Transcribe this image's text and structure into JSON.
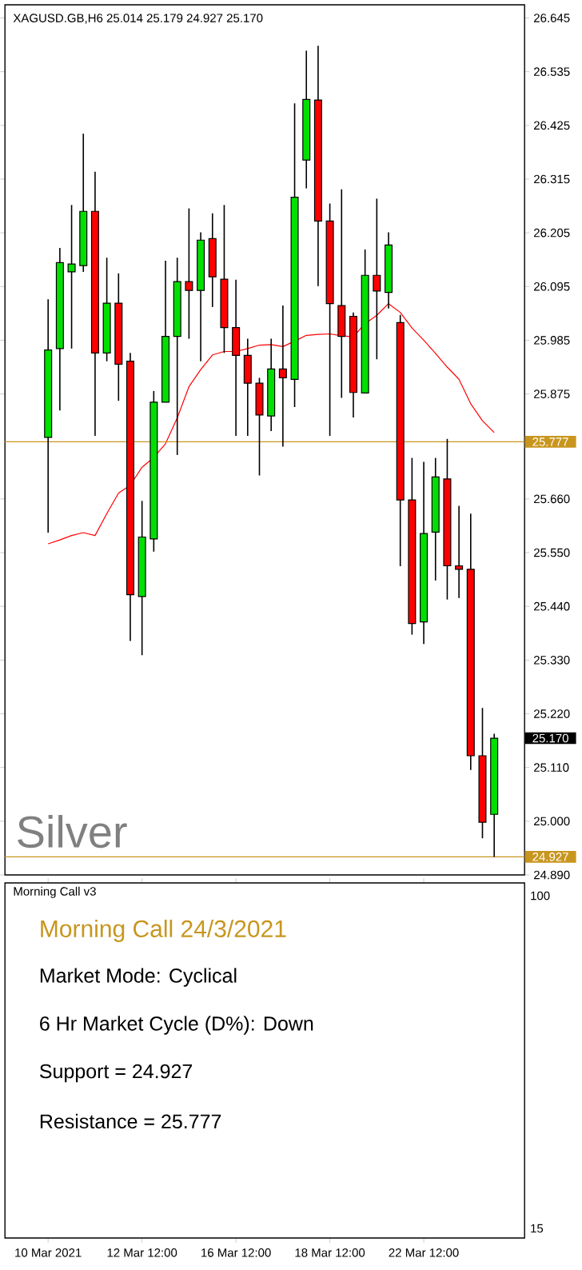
{
  "chart_data": [
    {
      "type": "candlestick",
      "title": "XAGUSD.GB,H6 25.014 25.179 24.927 25.170",
      "categories": [
        null,
        null,
        null,
        null,
        null,
        null,
        null,
        null,
        null,
        null,
        null,
        null,
        null,
        null,
        null,
        null,
        null,
        null,
        null,
        null,
        null,
        null,
        null,
        null,
        null,
        null,
        null,
        null,
        null,
        null,
        null,
        null,
        null,
        null,
        null,
        null,
        null,
        null,
        null
      ],
      "ohlc": [
        [
          25.786,
          26.069,
          25.591,
          25.965
        ],
        [
          25.968,
          26.174,
          25.841,
          26.144
        ],
        [
          26.125,
          26.262,
          25.968,
          26.141
        ],
        [
          26.138,
          26.408,
          26.125,
          26.249
        ],
        [
          26.249,
          26.33,
          25.789,
          25.959
        ],
        [
          25.959,
          26.154,
          25.942,
          26.061
        ],
        [
          26.061,
          26.122,
          25.861,
          25.936
        ],
        [
          25.942,
          25.959,
          25.369,
          25.464
        ],
        [
          25.46,
          25.656,
          25.34,
          25.582
        ],
        [
          25.578,
          25.881,
          25.552,
          25.858
        ],
        [
          25.858,
          26.148,
          25.858,
          25.993
        ],
        [
          25.993,
          26.154,
          25.75,
          26.105
        ],
        [
          26.105,
          26.255,
          25.988,
          26.087
        ],
        [
          26.087,
          26.206,
          25.942,
          26.19
        ],
        [
          26.193,
          26.245,
          26.053,
          26.115
        ],
        [
          26.11,
          26.262,
          25.959,
          26.011
        ],
        [
          26.011,
          26.109,
          25.789,
          25.954
        ],
        [
          25.954,
          25.988,
          25.789,
          25.897
        ],
        [
          25.897,
          25.908,
          25.708,
          25.832
        ],
        [
          25.83,
          25.988,
          25.799,
          25.926
        ],
        [
          25.926,
          26.056,
          25.767,
          25.908
        ],
        [
          25.905,
          26.47,
          25.848,
          26.278
        ],
        [
          26.354,
          26.578,
          26.296,
          26.478
        ],
        [
          26.477,
          26.588,
          26.096,
          26.229
        ],
        [
          26.229,
          26.265,
          25.789,
          26.06
        ],
        [
          26.056,
          26.294,
          25.867,
          25.993
        ],
        [
          26.034,
          26.042,
          25.827,
          25.878
        ],
        [
          25.877,
          26.171,
          25.877,
          26.118
        ],
        [
          26.118,
          26.275,
          25.946,
          26.086
        ],
        [
          26.083,
          26.206,
          26.05,
          26.18
        ],
        [
          26.021,
          26.037,
          25.522,
          25.658
        ],
        [
          25.658,
          25.744,
          25.382,
          25.405
        ],
        [
          25.408,
          25.736,
          25.363,
          25.589
        ],
        [
          25.592,
          25.744,
          25.493,
          25.705
        ],
        [
          25.701,
          25.783,
          25.454,
          25.523
        ],
        [
          25.523,
          25.646,
          25.457,
          25.516
        ],
        [
          25.516,
          25.63,
          25.105,
          25.134
        ],
        [
          25.134,
          25.232,
          24.965,
          24.998
        ],
        [
          25.014,
          25.179,
          24.927,
          25.17
        ]
      ],
      "colors": [
        "#00e000",
        "#00e000",
        "#00e000",
        "#00e000",
        "#ff0000",
        "#00e000",
        "#ff0000",
        "#ff0000",
        "#00e000",
        "#00e000",
        "#00e000",
        "#00e000",
        "#ff0000",
        "#00e000",
        "#ff0000",
        "#ff0000",
        "#ff0000",
        "#ff0000",
        "#ff0000",
        "#00e000",
        "#ff0000",
        "#00e000",
        "#00e000",
        "#ff0000",
        "#ff0000",
        "#ff0000",
        "#ff0000",
        "#00e000",
        "#ff0000",
        "#00e000",
        "#ff0000",
        "#ff0000",
        "#00e000",
        "#00e000",
        "#ff0000",
        "#ff0000",
        "#ff0000",
        "#ff0000",
        "#00e000"
      ],
      "series": [
        {
          "type": "line",
          "color": "#ff0000",
          "values": [
            25.568,
            25.576,
            25.585,
            25.591,
            25.585,
            25.63,
            25.672,
            25.688,
            25.725,
            25.745,
            25.773,
            25.826,
            25.89,
            25.925,
            25.955,
            25.962,
            25.962,
            25.968,
            25.975,
            25.976,
            25.972,
            25.983,
            25.995,
            25.997,
            25.998,
            25.994,
            25.992,
            26.019,
            26.036,
            26.06,
            26.042,
            26.01,
            25.985,
            25.958,
            25.93,
            25.905,
            25.855,
            25.82,
            25.796
          ]
        }
      ],
      "ylim": [
        24.89,
        26.672
      ],
      "yticks": [
        26.645,
        26.535,
        26.425,
        26.315,
        26.205,
        26.095,
        25.985,
        25.875,
        {
          "value": 25.66,
          "label": "25.660"
        },
        {
          "value": 25.55,
          "label": "25.550"
        },
        {
          "value": 25.44,
          "label": "25.440"
        },
        {
          "value": 25.33,
          "label": "25.330"
        },
        {
          "value": 25.22,
          "label": "25.220"
        },
        {
          "value": 25.11,
          "label": "25.110"
        },
        {
          "value": 25,
          "label": "25.000"
        },
        {
          "value": 24.89,
          "label": "24.890"
        }
      ],
      "ref_lines": [
        {
          "axis": "y",
          "value": 25.777,
          "label": "25.777",
          "color": "#c8961e"
        },
        {
          "axis": "y",
          "value": 24.927,
          "label": "24.927",
          "color": "#c8961e"
        }
      ],
      "annotations": [
        "Silver",
        "25.170"
      ]
    },
    {
      "type": "other",
      "title": "Morning Call v3",
      "subtitle": "Morning Call 24/3/2021",
      "categories": [
        "10 Mar 2021",
        null,
        null,
        null,
        null,
        null,
        null,
        null,
        "12 Mar 12:00",
        null,
        null,
        null,
        null,
        null,
        null,
        null,
        "16 Mar 12:00",
        null,
        null,
        null,
        null,
        null,
        null,
        null,
        "18 Mar 12:00",
        null,
        null,
        null,
        null,
        null,
        null,
        null,
        "22 Mar 12:00",
        null,
        null,
        null,
        null,
        null,
        null
      ],
      "annotations": [
        "Market Mode: Cyclical",
        "6 Hr Market Cycle (D%): Down",
        "Support = 24.927",
        "Resistance = 25.777",
        "100",
        "15"
      ]
    }
  ]
}
